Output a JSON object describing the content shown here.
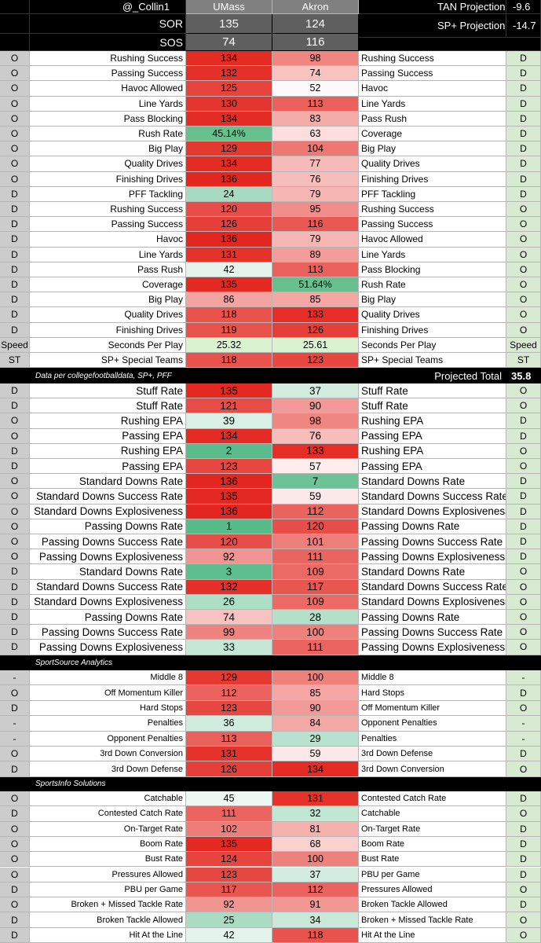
{
  "header": {
    "handle": "@_Collin1",
    "teams": [
      "UMass",
      "Akron"
    ],
    "rows": [
      {
        "label": "SOR",
        "values": [
          135,
          124
        ]
      },
      {
        "label": "SOS",
        "values": [
          74,
          116
        ]
      }
    ],
    "projections": [
      {
        "label": "TAN Projection",
        "value": -9.6
      },
      {
        "label": "SP+ Projection",
        "value": -14.7
      }
    ]
  },
  "color_scale": {
    "domain": [
      1,
      50,
      136
    ],
    "colors": [
      "#57bb8a",
      "#ffffff",
      "#e3261f"
    ]
  },
  "sections": [
    {
      "rows": [
        [
          "O",
          "Rushing Success",
          134,
          98,
          "Rushing Success",
          "D"
        ],
        [
          "O",
          "Passing Success",
          132,
          74,
          "Passing Success",
          "D"
        ],
        [
          "O",
          "Havoc Allowed",
          125,
          52,
          "Havoc",
          "D"
        ],
        [
          "O",
          "Line Yards",
          130,
          113,
          "Line Yards",
          "D"
        ],
        [
          "O",
          "Pass Blocking",
          134,
          83,
          "Pass Rush",
          "D"
        ],
        [
          "O",
          "Rush Rate",
          "45.14%",
          63,
          "Coverage",
          "D",
          [
            "#67c08e",
            null
          ]
        ],
        [
          "O",
          "Big Play",
          129,
          104,
          "Big Play",
          "D"
        ],
        [
          "O",
          "Quality Drives",
          134,
          77,
          "Quality Drives",
          "D"
        ],
        [
          "O",
          "Finishing Drives",
          136,
          76,
          "Finishing Drives",
          "D"
        ],
        [
          "D",
          "PFF Tackling",
          24,
          79,
          "PFF Tackling",
          "D"
        ],
        [
          "D",
          "Rushing Success",
          120,
          95,
          "Rushing Success",
          "O"
        ],
        [
          "D",
          "Passing Success",
          126,
          116,
          "Passing Success",
          "O"
        ],
        [
          "D",
          "Havoc",
          136,
          79,
          "Havoc Allowed",
          "O"
        ],
        [
          "D",
          "Line Yards",
          131,
          89,
          "Line Yards",
          "O"
        ],
        [
          "D",
          "Pass Rush",
          42,
          113,
          "Pass Blocking",
          "O"
        ],
        [
          "D",
          "Coverage",
          135,
          "51.64%",
          "Rush Rate",
          "O",
          [
            null,
            "#67c08e"
          ]
        ],
        [
          "D",
          "Big Play",
          86,
          85,
          "Big Play",
          "O"
        ],
        [
          "D",
          "Quality Drives",
          118,
          133,
          "Quality Drives",
          "O"
        ],
        [
          "D",
          "Finishing Drives",
          119,
          126,
          "Finishing Drives",
          "O"
        ],
        [
          "Speed",
          "Seconds Per Play",
          25.32,
          25.61,
          "Seconds Per Play",
          "Speed",
          [
            "#d9f2d0",
            "#d9f2d0"
          ]
        ],
        [
          "ST",
          "SP+ Special Teams",
          118,
          123,
          "SP+ Special Teams",
          "ST"
        ]
      ],
      "footer": {
        "note": "Data per collegefootballdata, SP+, PFF",
        "label": "Projected Total",
        "value": 35.8
      }
    },
    {
      "rows": [
        [
          "D",
          "Stuff Rate",
          135,
          37,
          "Stuff Rate",
          "O"
        ],
        [
          "D",
          "Stuff Rate",
          121,
          90,
          "Stuff Rate",
          "O"
        ],
        [
          "O",
          "Rushing EPA",
          39,
          98,
          "Rushing EPA",
          "D"
        ],
        [
          "O",
          "Passing EPA",
          134,
          76,
          "Passing EPA",
          "D"
        ],
        [
          "D",
          "Rushing EPA",
          2,
          133,
          "Rushing EPA",
          "O"
        ],
        [
          "D",
          "Passing EPA",
          123,
          57,
          "Passing EPA",
          "O"
        ],
        [
          "O",
          "Standard Downs Rate",
          136,
          7,
          "Standard Downs Rate",
          "D"
        ],
        [
          "O",
          "Standard Downs Success Rate",
          135,
          59,
          "Standard Downs Success Rate",
          "D"
        ],
        [
          "O",
          "Standard Downs Explosiveness",
          136,
          112,
          "Standard Downs Explosiveness",
          "D"
        ],
        [
          "O",
          "Passing Downs Rate",
          1,
          120,
          "Passing Downs Rate",
          "D"
        ],
        [
          "O",
          "Passing Downs Success Rate",
          120,
          101,
          "Passing Downs Success Rate",
          "D"
        ],
        [
          "O",
          "Passing Downs Explosiveness",
          92,
          111,
          "Passing Downs Explosiveness",
          "D"
        ],
        [
          "D",
          "Standard Downs Rate",
          3,
          109,
          "Standard Downs Rate",
          "O"
        ],
        [
          "D",
          "Standard Downs Success Rate",
          132,
          117,
          "Standard Downs Success Rate",
          "O"
        ],
        [
          "D",
          "Standard Downs Explosiveness",
          26,
          109,
          "Standard Downs Explosiveness",
          "O"
        ],
        [
          "D",
          "Passing Downs Rate",
          74,
          28,
          "Passing Downs Rate",
          "O"
        ],
        [
          "D",
          "Passing Downs Success Rate",
          99,
          100,
          "Passing Downs Success Rate",
          "O"
        ],
        [
          "D",
          "Passing Downs Explosiveness",
          33,
          111,
          "Passing Downs Explosiveness",
          "O"
        ]
      ],
      "footer": {
        "note": "SportSource Analytics"
      }
    },
    {
      "rows": [
        [
          "-",
          "Middle 8",
          129,
          100,
          "Middle 8",
          "-"
        ],
        [
          "O",
          "Off Momentum Killer",
          112,
          85,
          "Hard Stops",
          "D"
        ],
        [
          "D",
          "Hard Stops",
          123,
          90,
          "Off Momentum Killer",
          "O"
        ],
        [
          "-",
          "Penalties",
          36,
          84,
          "Opponent Penalties",
          "-"
        ],
        [
          "-",
          "Opponent Penalties",
          113,
          29,
          "Penalties",
          "-"
        ],
        [
          "O",
          "3rd Down Conversion",
          131,
          59,
          "3rd Down Defense",
          "D"
        ],
        [
          "D",
          "3rd Down Defense",
          126,
          134,
          "3rd Down Conversion",
          "O"
        ]
      ],
      "footer": {
        "note": "SportsInfo Solutions"
      }
    },
    {
      "rows": [
        [
          "O",
          "Catchable",
          45,
          131,
          "Contested Catch Rate",
          "D"
        ],
        [
          "D",
          "Contested Catch Rate",
          111,
          32,
          "Catchable",
          "O"
        ],
        [
          "O",
          "On-Target Rate",
          102,
          81,
          "On-Target Rate",
          "D"
        ],
        [
          "O",
          "Boom Rate",
          135,
          68,
          "Boom Rate",
          "D"
        ],
        [
          "O",
          "Bust Rate",
          124,
          100,
          "Bust Rate",
          "D"
        ],
        [
          "O",
          "Pressures Allowed",
          123,
          37,
          "PBU per Game",
          "D"
        ],
        [
          "D",
          "PBU per Game",
          117,
          112,
          "Pressures Allowed",
          "O"
        ],
        [
          "O",
          "Broken + Missed Tackle Rate",
          92,
          91,
          "Broken Tackle Allowed",
          "D"
        ],
        [
          "D",
          "Broken Tackle Allowed",
          25,
          34,
          "Broken + Missed Tackle Rate",
          "O"
        ],
        [
          "D",
          "Hit At the Line",
          42,
          118,
          "Hit At the Line",
          "O"
        ]
      ]
    }
  ]
}
